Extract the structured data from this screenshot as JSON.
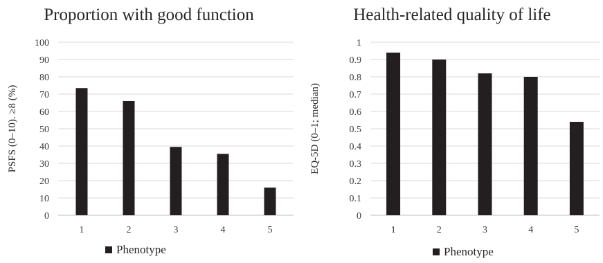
{
  "chart_data": [
    {
      "type": "bar",
      "title": "Proportion with good function",
      "ylabel": "PSFS (0–10). ≥8 (%)",
      "xlabel": "",
      "categories": [
        "1",
        "2",
        "3",
        "4",
        "5"
      ],
      "series": [
        {
          "name": "Phenotype",
          "values": [
            73.5,
            66,
            39.5,
            35.5,
            16
          ]
        }
      ],
      "ylim": [
        0,
        100
      ],
      "yticks": [
        "0",
        "10",
        "20",
        "30",
        "40",
        "50",
        "60",
        "70",
        "80",
        "90",
        "100"
      ],
      "grid": true,
      "legend": "bottom",
      "color": "#231f20"
    },
    {
      "type": "bar",
      "title": "Health-related quality of life",
      "ylabel": "EQ-5D (0–1; median)",
      "xlabel": "",
      "categories": [
        "1",
        "2",
        "3",
        "4",
        "5"
      ],
      "series": [
        {
          "name": "Phenotype",
          "values": [
            0.94,
            0.9,
            0.82,
            0.8,
            0.54
          ]
        }
      ],
      "ylim": [
        0,
        1
      ],
      "yticks": [
        "0",
        "0.1",
        "0.2",
        "0.3",
        "0.4",
        "0.5",
        "0.6",
        "0.7",
        "0.8",
        "0.9",
        "1"
      ],
      "grid": true,
      "legend": "bottom",
      "color": "#231f20"
    }
  ]
}
